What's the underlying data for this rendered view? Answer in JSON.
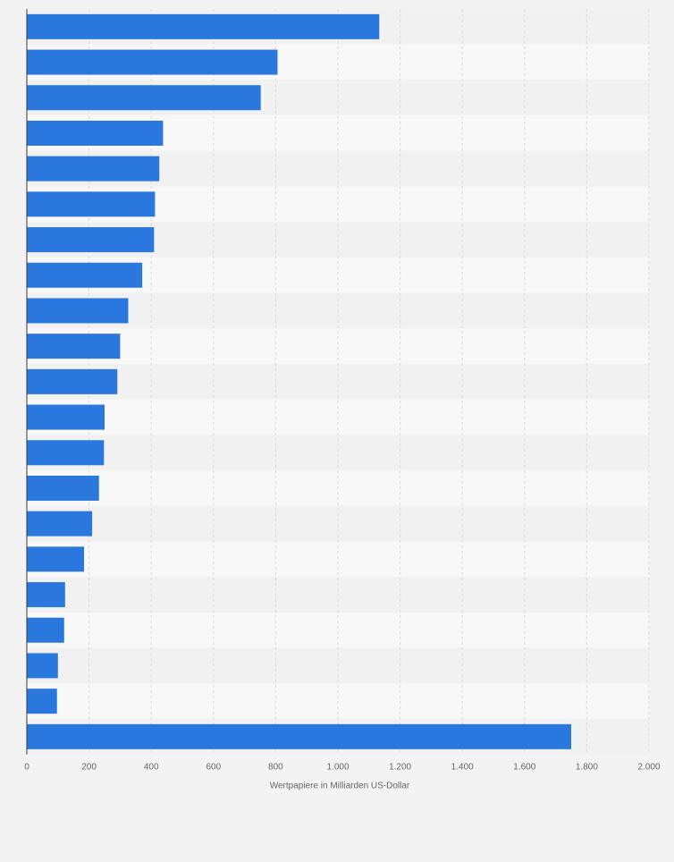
{
  "colors": {
    "bar": "#2a77dd",
    "background": "#f3f3f3",
    "band_light": "#f8f8f8",
    "band_dark": "#f1f1f1",
    "grid": "#d9d9d9",
    "axis": "#3a3a3a",
    "tick_text": "#666666"
  },
  "chart_data": {
    "type": "bar",
    "orientation": "horizontal",
    "title": "",
    "xlabel": "Wertpapiere in Milliarden US-Dollar",
    "ylabel": "",
    "xlim": [
      0,
      2000
    ],
    "x_ticks": [
      0,
      200,
      400,
      600,
      800,
      1000,
      1200,
      1400,
      1600,
      1800,
      2000
    ],
    "x_tick_labels": [
      "0",
      "200",
      "400",
      "600",
      "800",
      "1.000",
      "1.200",
      "1.400",
      "1.600",
      "1.800",
      "2.000"
    ],
    "grid": true,
    "category_labels_visible": false,
    "values": [
      1133,
      806,
      752,
      438,
      426,
      412,
      409,
      371,
      326,
      300,
      291,
      250,
      248,
      232,
      210,
      184,
      123,
      120,
      100,
      97,
      1750
    ]
  }
}
